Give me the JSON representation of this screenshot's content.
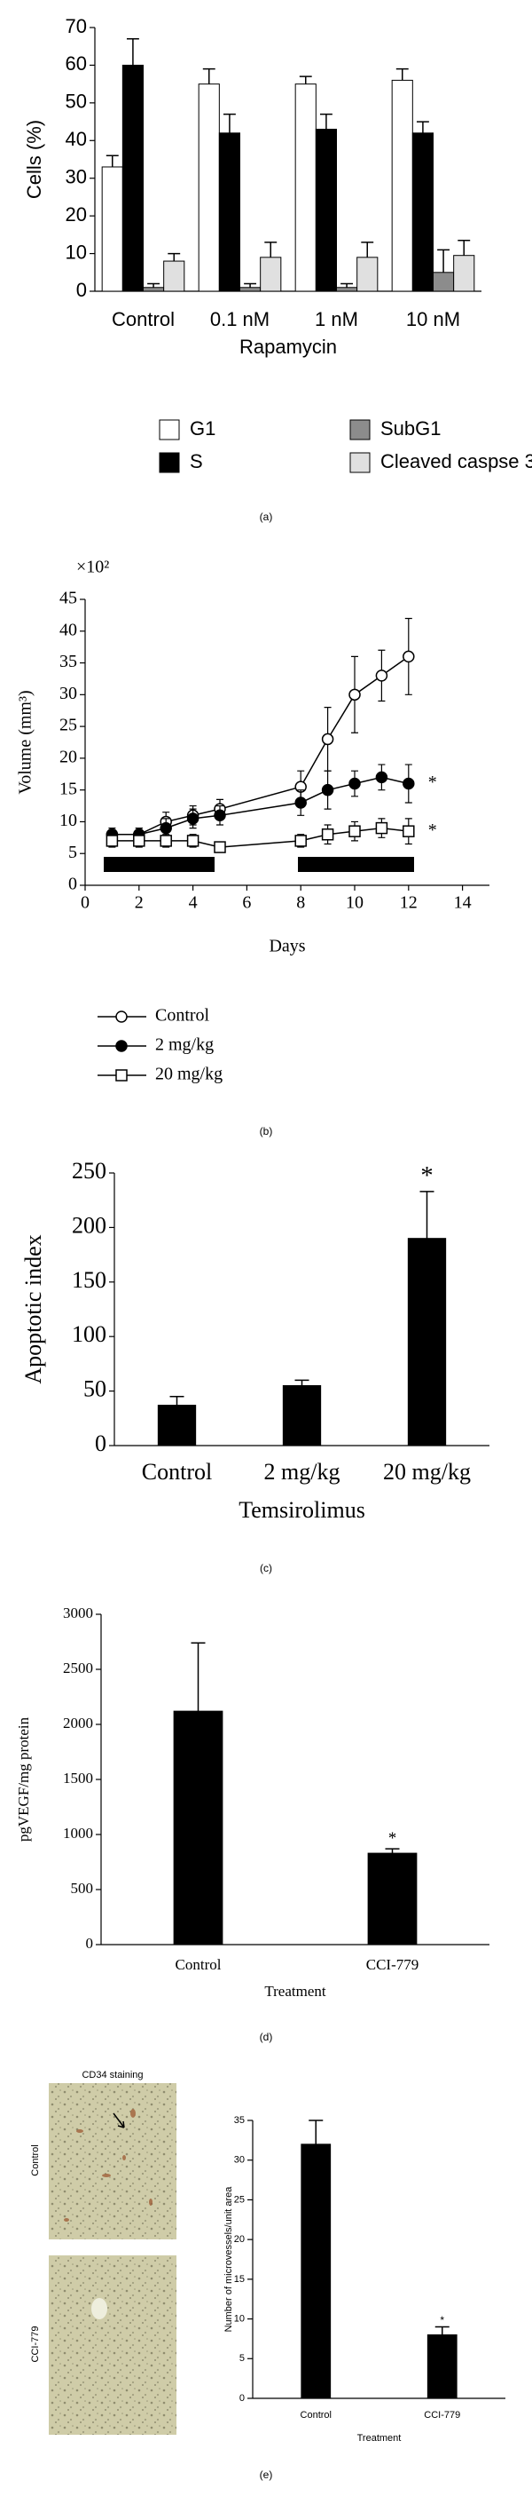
{
  "chart_data": [
    {
      "type": "bar",
      "panel_label": "(a)",
      "ylabel": "Cells (%)",
      "xlabel": "Rapamycin",
      "categories": [
        "Control",
        "0.1 nM",
        "1 nM",
        "10 nM"
      ],
      "series": [
        {
          "name": "G1",
          "color": "#ffffff",
          "values": [
            33,
            55,
            55,
            56
          ],
          "errors": [
            3,
            4,
            2,
            3
          ]
        },
        {
          "name": "S",
          "color": "#000000",
          "values": [
            60,
            42,
            43,
            42
          ],
          "errors": [
            7,
            5,
            4,
            3
          ]
        },
        {
          "name": "SubG1",
          "color": "#8c8c8c",
          "values": [
            1,
            1,
            1,
            5
          ],
          "errors": [
            1,
            1,
            1,
            6
          ]
        },
        {
          "name": "Cleaved caspse 3",
          "color": "#e0e0e0",
          "values": [
            8,
            9,
            9,
            9.5
          ],
          "errors": [
            2,
            4,
            4,
            4
          ]
        }
      ],
      "ylim": [
        0,
        70
      ],
      "yticks": [
        0,
        10,
        20,
        30,
        40,
        50,
        60,
        70
      ]
    },
    {
      "type": "line",
      "panel_label": "(b)",
      "ylabel": "Volume (mm³)",
      "multiplier": "×10²",
      "xlabel": "Days",
      "x": [
        1,
        2,
        3,
        4,
        5,
        8,
        9,
        10,
        11,
        12
      ],
      "series": [
        {
          "name": "Control",
          "marker": "circle",
          "color": "#ffffff",
          "values": [
            8,
            8,
            10,
            11,
            12,
            15.5,
            23,
            30,
            33,
            36
          ],
          "errors": [
            0.5,
            1,
            1.5,
            1.5,
            1.5,
            2.5,
            5,
            6,
            4,
            6
          ]
        },
        {
          "name": "2 mg/kg",
          "marker": "circle",
          "color": "#000000",
          "values": [
            8,
            8,
            9,
            10.5,
            11,
            13,
            15,
            16,
            17,
            16
          ],
          "errors": [
            1,
            1,
            1.5,
            1.5,
            1.5,
            2,
            3,
            2,
            2,
            3
          ],
          "annotation": "*"
        },
        {
          "name": "20 mg/kg",
          "marker": "square",
          "color": "#ffffff",
          "values": [
            7,
            7,
            7,
            7,
            6,
            7,
            8,
            8.5,
            9,
            8.5
          ],
          "errors": [
            1,
            1,
            1,
            1,
            0.5,
            1,
            1.5,
            1.5,
            1.5,
            2
          ],
          "annotation": "*"
        }
      ],
      "xlim": [
        0,
        15
      ],
      "xticks": [
        0,
        2,
        4,
        6,
        8,
        10,
        12,
        14
      ],
      "ylim": [
        0,
        45
      ],
      "yticks": [
        0,
        5,
        10,
        15,
        20,
        25,
        30,
        35,
        40,
        45
      ]
    },
    {
      "type": "bar",
      "panel_label": "(c)",
      "ylabel": "Apoptotic index",
      "xlabel": "Temsirolimus",
      "categories": [
        "Control",
        "2 mg/kg",
        "20 mg/kg"
      ],
      "series": [
        {
          "color": "#000000",
          "values": [
            37,
            55,
            190
          ],
          "errors": [
            8,
            5,
            43
          ]
        }
      ],
      "annotations": [
        {
          "text": "*",
          "category": "20 mg/kg"
        }
      ],
      "ylim": [
        0,
        250
      ],
      "yticks": [
        0,
        50,
        100,
        150,
        200,
        250
      ]
    },
    {
      "type": "bar",
      "panel_label": "(d)",
      "ylabel": "pgVEGF/mg protein",
      "xlabel": "Treatment",
      "categories": [
        "Control",
        "CCI-779"
      ],
      "series": [
        {
          "color": "#000000",
          "values": [
            2120,
            830
          ],
          "errors": [
            620,
            40
          ]
        }
      ],
      "annotations": [
        {
          "text": "*",
          "category": "CCI-779"
        }
      ],
      "ylim": [
        0,
        3000
      ],
      "yticks": [
        0,
        500,
        1000,
        1500,
        2000,
        2500,
        3000
      ]
    },
    {
      "type": "bar",
      "panel_label": "(e)",
      "ylabel": "Number of microvessels/unit area",
      "xlabel": "Treatment",
      "image_panel": {
        "title": "CD34 staining",
        "labels": [
          "Control",
          "CCI-779"
        ]
      },
      "categories": [
        "Control",
        "CCI-779"
      ],
      "series": [
        {
          "color": "#000000",
          "values": [
            32,
            8
          ],
          "errors": [
            3,
            1
          ]
        }
      ],
      "annotations": [
        {
          "text": "*",
          "category": "CCI-779"
        }
      ],
      "ylim": [
        0,
        35
      ],
      "yticks": [
        0,
        5,
        10,
        15,
        20,
        25,
        30,
        35
      ]
    }
  ]
}
